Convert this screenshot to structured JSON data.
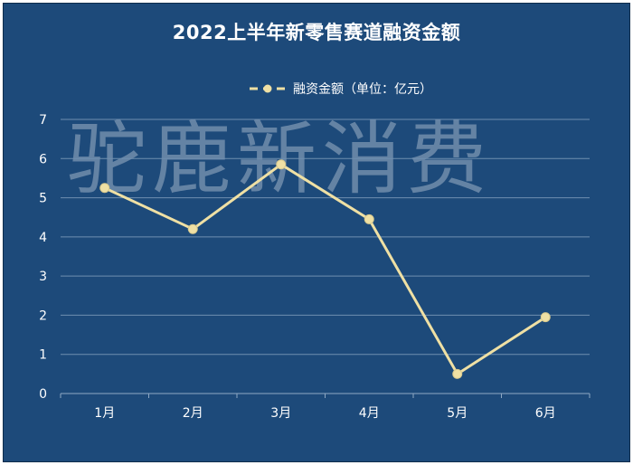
{
  "chart_data": {
    "type": "line",
    "title": "2022上半年新零售赛道融资金额",
    "categories": [
      "1月",
      "2月",
      "3月",
      "4月",
      "5月",
      "6月"
    ],
    "series": [
      {
        "name": "融资金额（单位：亿元）",
        "values": [
          5.25,
          4.2,
          5.85,
          4.45,
          0.5,
          1.95
        ]
      }
    ],
    "y_ticks": [
      "0",
      "1",
      "2",
      "3",
      "4",
      "5",
      "6",
      "7"
    ],
    "ylim": [
      0,
      7
    ],
    "grid": true,
    "legend_position": "top-center",
    "watermark": "驼鹿新消费",
    "colors": {
      "background": "#1d4a7a",
      "line": "#efe0a4",
      "grid": "#6f8fb0",
      "text": "#ffffff"
    }
  }
}
